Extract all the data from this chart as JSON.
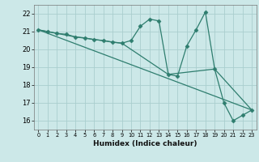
{
  "title": "",
  "xlabel": "Humidex (Indice chaleur)",
  "bg_color": "#cce8e8",
  "line_color": "#2e7d6e",
  "marker": "D",
  "markersize": 2.5,
  "linewidth": 0.9,
  "xlim": [
    -0.5,
    23.5
  ],
  "ylim": [
    15.5,
    22.5
  ],
  "xticks": [
    0,
    1,
    2,
    3,
    4,
    5,
    6,
    7,
    8,
    9,
    10,
    11,
    12,
    13,
    14,
    15,
    16,
    17,
    18,
    19,
    20,
    21,
    22,
    23
  ],
  "yticks": [
    16,
    17,
    18,
    19,
    20,
    21,
    22
  ],
  "grid_color": "#aacece",
  "lines": [
    {
      "x": [
        0,
        1,
        2,
        3,
        4,
        5,
        6,
        7,
        8,
        9,
        10,
        11,
        12,
        13,
        14,
        15,
        16,
        17,
        18,
        19,
        20,
        21,
        22,
        23
      ],
      "y": [
        21.1,
        21.0,
        20.9,
        20.85,
        20.7,
        20.65,
        20.55,
        20.5,
        20.4,
        20.35,
        20.5,
        21.3,
        21.7,
        21.6,
        18.6,
        18.5,
        20.2,
        21.1,
        22.1,
        18.9,
        17.0,
        16.0,
        16.3,
        16.6
      ],
      "with_markers": true
    },
    {
      "x": [
        0,
        23
      ],
      "y": [
        21.1,
        16.6
      ],
      "with_markers": false
    },
    {
      "x": [
        0,
        4,
        9,
        14,
        19,
        23
      ],
      "y": [
        21.1,
        20.7,
        20.35,
        18.6,
        18.9,
        16.6
      ],
      "with_markers": false
    }
  ]
}
